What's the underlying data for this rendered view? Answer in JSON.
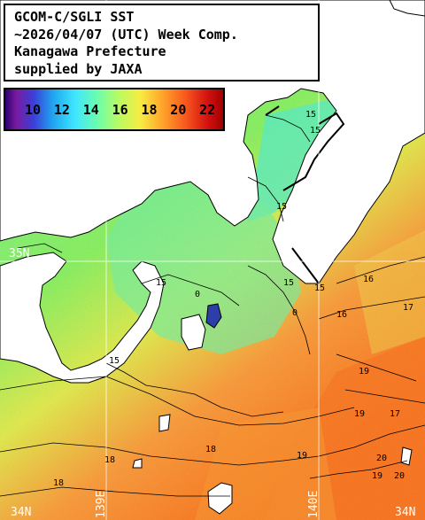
{
  "header": {
    "lines": [
      "GCOM-C/SGLI SST",
      "~2026/04/07 (UTC) Week Comp.",
      "Kanagawa Prefecture",
      "supplied by JAXA"
    ]
  },
  "legend": {
    "ticks": [
      "10",
      "12",
      "14",
      "16",
      "18",
      "20",
      "22"
    ]
  },
  "grid_labels": {
    "lat_35n": "35N",
    "lon_139e": "139E",
    "lon_140e": "140E",
    "bl": "34N",
    "br": "34N"
  },
  "contours": [
    "15",
    "15",
    "15",
    "15",
    "15",
    "15",
    "15",
    "16",
    "16",
    "17",
    "18",
    "18",
    "18",
    "19",
    "19",
    "19",
    "19",
    "20",
    "20",
    "0",
    "0",
    "17"
  ]
}
